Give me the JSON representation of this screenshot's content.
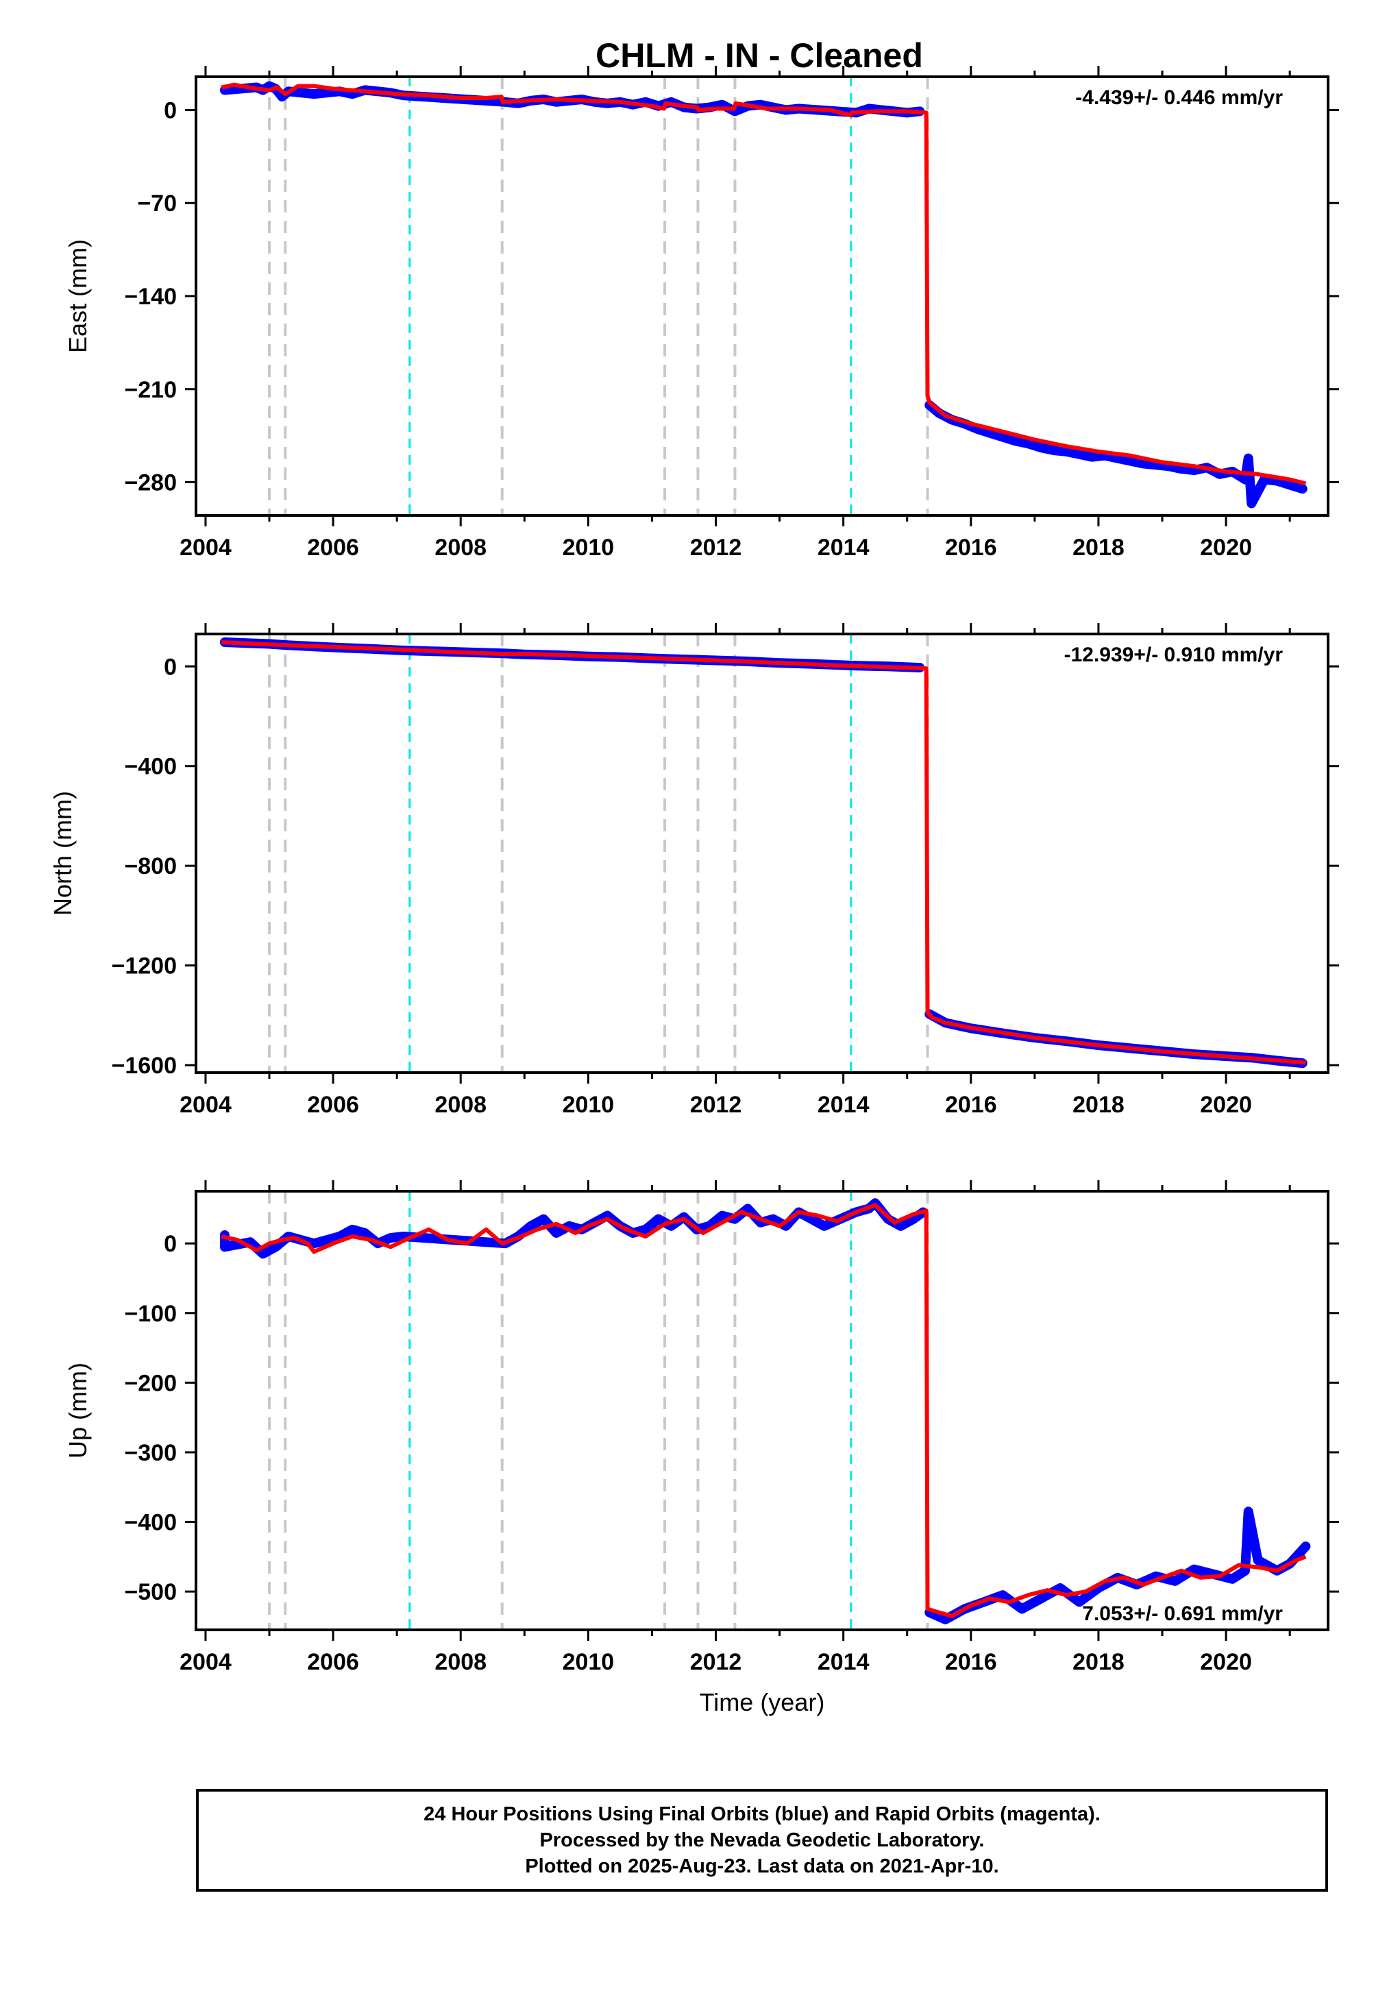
{
  "title": "CHLM  - IN - Cleaned",
  "colors": {
    "data": "#0000ff",
    "model": "#ff0000",
    "final_offset": "#c8c8c8",
    "rapid_offset": "#00e5e5",
    "frame": "#000000"
  },
  "x_axis": {
    "range": [
      2003.85,
      2021.6
    ],
    "ticks": [
      2004,
      2006,
      2008,
      2010,
      2012,
      2014,
      2016,
      2018,
      2020
    ],
    "label": "Time (year)"
  },
  "offsets": {
    "gray_dashed": [
      2005.0,
      2005.25,
      2008.65,
      2011.2,
      2011.72,
      2012.3,
      2015.32
    ],
    "cyan_dashed": [
      2007.2,
      2014.12
    ]
  },
  "chart_data": [
    {
      "type": "scatter",
      "name": "east",
      "ylabel": "East (mm)",
      "ylim": [
        -305,
        25
      ],
      "yticks": [
        0,
        -70,
        -140,
        -210,
        -280
      ],
      "ytick_labels": [
        "0",
        "−70",
        "−140",
        "−210",
        "−280"
      ],
      "rate_label": "-4.439+/- 0.446 mm/yr",
      "series": [
        {
          "kind": "model",
          "x": [
            2004.25,
            2004.45,
            2004.8,
            2005.0,
            2005.12,
            2005.25,
            2005.45,
            2005.7,
            2006.0,
            2006.5,
            2007.0,
            2007.5,
            2008.0,
            2008.4,
            2008.64,
            2008.66,
            2009.0,
            2009.5,
            2010.0,
            2010.5,
            2011.0,
            2011.19,
            2011.21,
            2011.5,
            2011.71,
            2011.73,
            2012.0,
            2012.29,
            2012.31,
            2012.8,
            2013.3,
            2013.8,
            2014.11,
            2014.13,
            2014.5,
            2015.0,
            2015.3,
            2015.32,
            2015.35,
            2015.6,
            2016.0,
            2016.5,
            2017.0,
            2017.5,
            2018.0,
            2018.5,
            2019.0,
            2019.5,
            2020.0,
            2020.5,
            2021.0,
            2021.25
          ],
          "y": [
            17,
            19,
            16,
            15,
            17,
            12,
            18,
            18,
            16,
            14,
            12,
            11,
            9,
            9,
            10,
            6,
            7,
            8,
            7,
            6,
            3,
            1,
            5,
            3,
            2,
            0,
            1,
            1,
            5,
            1,
            1,
            0,
            -4,
            -2,
            -1,
            -1,
            -2,
            -215,
            -220,
            -230,
            -236,
            -242,
            -248,
            -253,
            -257,
            -260,
            -265,
            -268,
            -272,
            -274,
            -278,
            -281
          ]
        },
        {
          "kind": "data",
          "x": [
            2004.3,
            2004.8,
            2004.9,
            2005.0,
            2005.1,
            2005.2,
            2005.3,
            2005.7,
            2006.1,
            2006.3,
            2006.5,
            2006.7,
            2006.9,
            2007.1,
            2008.7,
            2008.9,
            2009.1,
            2009.3,
            2009.5,
            2009.7,
            2009.9,
            2010.1,
            2010.3,
            2010.5,
            2010.7,
            2010.9,
            2011.1,
            2011.3,
            2011.5,
            2011.7,
            2011.9,
            2012.1,
            2012.3,
            2012.5,
            2012.7,
            2012.9,
            2013.1,
            2013.3,
            2014.2,
            2014.4,
            2014.6,
            2014.8,
            2015.0,
            2015.2,
            2015.35,
            2015.5,
            2015.7,
            2015.9,
            2016.1,
            2016.3,
            2016.5,
            2016.7,
            2016.9,
            2017.1,
            2017.3,
            2017.5,
            2017.7,
            2017.9,
            2018.1,
            2018.3,
            2018.5,
            2018.7,
            2018.9,
            2019.1,
            2019.3,
            2019.5,
            2019.7,
            2019.9,
            2020.1,
            2020.3,
            2020.35,
            2020.4,
            2020.6,
            2020.8,
            2021.0,
            2021.2
          ],
          "y": [
            15,
            17,
            15,
            18,
            16,
            10,
            14,
            12,
            14,
            12,
            15,
            14,
            13,
            11,
            6,
            5,
            7,
            8,
            6,
            7,
            8,
            6,
            5,
            6,
            4,
            6,
            3,
            6,
            2,
            1,
            2,
            4,
            -1,
            3,
            4,
            2,
            0,
            1,
            -2,
            1,
            0,
            -1,
            -2,
            -1,
            -222,
            -228,
            -233,
            -236,
            -240,
            -243,
            -246,
            -249,
            -251,
            -254,
            -256,
            -257,
            -259,
            -261,
            -260,
            -262,
            -264,
            -266,
            -267,
            -268,
            -270,
            -271,
            -269,
            -274,
            -272,
            -278,
            -262,
            -296,
            -278,
            -279,
            -282,
            -285
          ]
        }
      ]
    },
    {
      "type": "scatter",
      "name": "north",
      "ylabel": "North (mm)",
      "ylim": [
        -1630,
        130
      ],
      "yticks": [
        0,
        -400,
        -800,
        -1200,
        -1600
      ],
      "ytick_labels": [
        "0",
        "−400",
        "−800",
        "−1200",
        "−1600"
      ],
      "rate_label": "-12.939+/- 0.910 mm/yr",
      "series": [
        {
          "kind": "model",
          "x": [
            2004.25,
            2005.0,
            2006.0,
            2007.0,
            2008.0,
            2008.65,
            2009.0,
            2010.0,
            2011.0,
            2012.0,
            2013.0,
            2014.0,
            2015.0,
            2015.3,
            2015.32,
            2015.4,
            2015.6,
            2016.0,
            2016.5,
            2017.0,
            2017.5,
            2018.0,
            2018.5,
            2019.0,
            2019.5,
            2020.0,
            2020.5,
            2021.0,
            2021.25
          ],
          "y": [
            97,
            88,
            78,
            68,
            56,
            50,
            50,
            42,
            33,
            24,
            14,
            3,
            -5,
            -8,
            -1390,
            -1410,
            -1430,
            -1450,
            -1470,
            -1490,
            -1505,
            -1520,
            -1532,
            -1545,
            -1555,
            -1565,
            -1575,
            -1585,
            -1590
          ]
        },
        {
          "kind": "data",
          "x": [
            2004.3,
            2005.0,
            2005.3,
            2005.7,
            2006.2,
            2006.6,
            2007.0,
            2008.7,
            2009.0,
            2009.5,
            2010.0,
            2010.5,
            2011.0,
            2011.5,
            2012.0,
            2012.5,
            2013.0,
            2013.5,
            2014.2,
            2014.7,
            2015.2,
            2015.35,
            2015.6,
            2016.0,
            2016.5,
            2017.0,
            2017.5,
            2018.0,
            2018.5,
            2019.0,
            2019.5,
            2020.0,
            2020.4,
            2020.8,
            2021.2
          ],
          "y": [
            97,
            90,
            85,
            80,
            74,
            70,
            65,
            52,
            48,
            45,
            40,
            37,
            32,
            28,
            24,
            20,
            14,
            10,
            3,
            0,
            -5,
            -1395,
            -1430,
            -1452,
            -1472,
            -1490,
            -1504,
            -1520,
            -1532,
            -1544,
            -1556,
            -1564,
            -1570,
            -1582,
            -1592
          ]
        }
      ]
    },
    {
      "type": "scatter",
      "name": "up",
      "ylabel": "Up (mm)",
      "ylim": [
        -555,
        75
      ],
      "yticks": [
        0,
        -100,
        -200,
        -300,
        -400,
        -500
      ],
      "ytick_labels": [
        "0",
        "−100",
        "−200",
        "−300",
        "−400",
        "−500"
      ],
      "rate_label": "7.053+/- 0.691 mm/yr",
      "series": [
        {
          "kind": "model",
          "x": [
            2004.25,
            2004.5,
            2004.8,
            2005.0,
            2005.2,
            2005.4,
            2005.6,
            2005.7,
            2006.0,
            2006.3,
            2006.6,
            2006.9,
            2007.2,
            2007.5,
            2007.8,
            2008.1,
            2008.4,
            2008.65,
            2008.9,
            2009.2,
            2009.5,
            2009.8,
            2010.0,
            2010.3,
            2010.6,
            2010.9,
            2011.2,
            2011.5,
            2011.8,
            2012.1,
            2012.4,
            2012.7,
            2013.0,
            2013.3,
            2013.6,
            2013.9,
            2014.2,
            2014.5,
            2014.8,
            2015.1,
            2015.3,
            2015.32,
            2015.5,
            2015.7,
            2016.0,
            2016.3,
            2016.6,
            2016.9,
            2017.2,
            2017.5,
            2017.8,
            2018.1,
            2018.4,
            2018.7,
            2019.0,
            2019.3,
            2019.6,
            2019.9,
            2020.2,
            2020.5,
            2020.8,
            2021.1,
            2021.25
          ],
          "y": [
            10,
            5,
            -10,
            0,
            5,
            8,
            0,
            -12,
            0,
            10,
            5,
            -5,
            8,
            20,
            5,
            0,
            20,
            0,
            8,
            20,
            28,
            15,
            25,
            35,
            20,
            10,
            28,
            35,
            15,
            30,
            45,
            35,
            25,
            45,
            40,
            32,
            45,
            55,
            30,
            42,
            47,
            -525,
            -530,
            -535,
            -520,
            -510,
            -515,
            -505,
            -498,
            -505,
            -500,
            -485,
            -480,
            -490,
            -480,
            -470,
            -480,
            -478,
            -462,
            -465,
            -470,
            -455,
            -450
          ]
        },
        {
          "kind": "data",
          "x": [
            2004.3,
            2004.3,
            2004.7,
            2004.9,
            2005.1,
            2005.3,
            2005.7,
            2006.1,
            2006.3,
            2006.5,
            2006.7,
            2006.9,
            2007.1,
            2008.7,
            2008.9,
            2009.1,
            2009.3,
            2009.5,
            2009.7,
            2009.9,
            2010.1,
            2010.3,
            2010.5,
            2010.7,
            2010.9,
            2011.1,
            2011.3,
            2011.5,
            2011.7,
            2011.9,
            2012.1,
            2012.3,
            2012.5,
            2012.7,
            2012.9,
            2013.1,
            2013.3,
            2013.7,
            2014.2,
            2014.4,
            2014.5,
            2014.7,
            2014.9,
            2015.1,
            2015.25,
            2015.35,
            2015.6,
            2015.9,
            2016.2,
            2016.5,
            2016.8,
            2017.1,
            2017.4,
            2017.7,
            2018.0,
            2018.3,
            2018.6,
            2018.9,
            2019.2,
            2019.5,
            2019.8,
            2020.1,
            2020.3,
            2020.35,
            2020.5,
            2020.8,
            2021.0,
            2021.2,
            2021.25
          ],
          "y": [
            12,
            -5,
            2,
            -15,
            -5,
            10,
            0,
            10,
            20,
            15,
            0,
            8,
            10,
            0,
            10,
            25,
            35,
            15,
            25,
            20,
            30,
            40,
            25,
            15,
            20,
            35,
            25,
            38,
            20,
            25,
            40,
            35,
            50,
            30,
            35,
            25,
            45,
            25,
            45,
            50,
            58,
            35,
            25,
            35,
            45,
            -530,
            -540,
            -525,
            -515,
            -505,
            -525,
            -510,
            -495,
            -515,
            -495,
            -480,
            -490,
            -478,
            -485,
            -468,
            -475,
            -482,
            -470,
            -385,
            -455,
            -470,
            -460,
            -440,
            -435
          ]
        }
      ]
    }
  ],
  "footer": {
    "line1": "24 Hour Positions Using Final Orbits (blue) and Rapid Orbits (magenta).",
    "line2": "Processed by the Nevada Geodetic Laboratory.",
    "line3": "Plotted on 2025-Aug-23. Last data on 2021-Apr-10."
  }
}
